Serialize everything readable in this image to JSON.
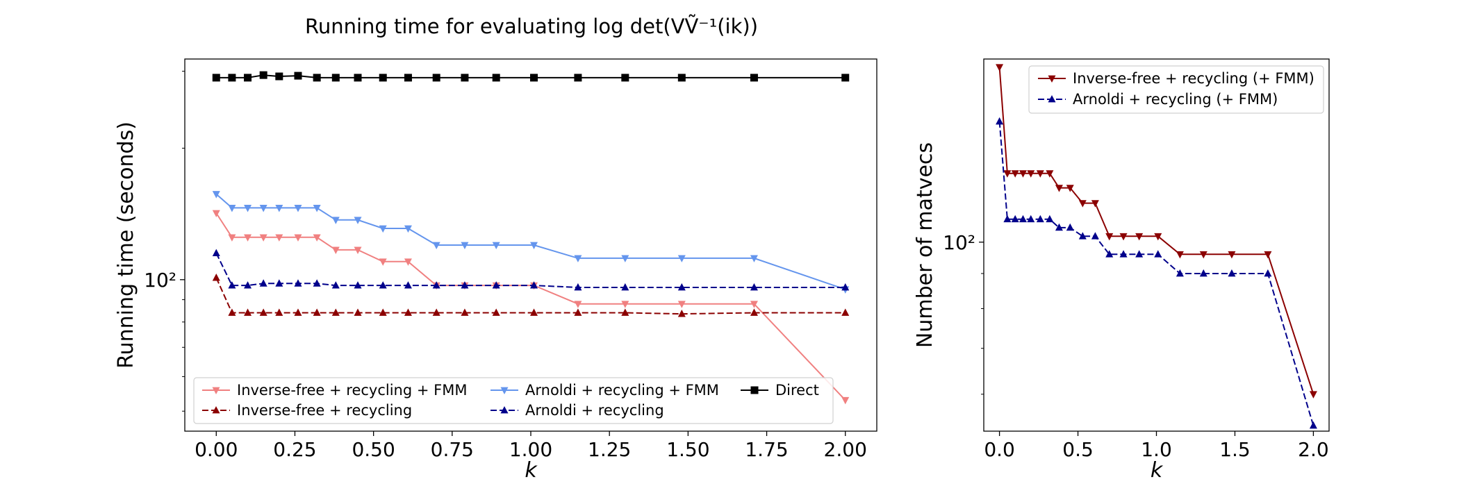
{
  "figure": {
    "title": "Running time for evaluating log det(VṼ⁻¹(ik))"
  },
  "chart_data": [
    {
      "type": "line",
      "title": "Running time for evaluating log det(VṼ⁻¹(ik))",
      "xlabel": "k",
      "ylabel": "Running time (seconds)",
      "y_scale": "log",
      "xlim": [
        -0.1,
        2.1
      ],
      "ylim": [
        45,
        320
      ],
      "x_ticks": [
        0.0,
        0.25,
        0.5,
        0.75,
        1.0,
        1.25,
        1.5,
        1.75,
        2.0
      ],
      "x_tick_labels": [
        "0.00",
        "0.25",
        "0.50",
        "0.75",
        "1.00",
        "1.25",
        "1.50",
        "1.75",
        "2.00"
      ],
      "y_ticks": [
        100
      ],
      "y_tick_labels": [
        "10²"
      ],
      "grid": false,
      "legend_position": "lower-center",
      "legend_columns": 3,
      "series": [
        {
          "name": "Inverse-free + recycling + FMM",
          "color": "#f08080",
          "linestyle": "solid",
          "marker": "triangle-down",
          "x": [
            0.0,
            0.05,
            0.1,
            0.15,
            0.2,
            0.26,
            0.32,
            0.38,
            0.45,
            0.53,
            0.61,
            0.7,
            0.79,
            0.89,
            1.01,
            1.15,
            1.3,
            1.48,
            1.71,
            2.0
          ],
          "y": [
            142,
            125,
            125,
            125,
            125,
            125,
            125,
            117,
            117,
            110,
            110,
            97,
            97,
            97,
            97,
            88,
            88,
            88,
            88,
            53
          ]
        },
        {
          "name": "Inverse-free + recycling",
          "color": "#8b0000",
          "linestyle": "dashed",
          "marker": "triangle-up",
          "x": [
            0.0,
            0.05,
            0.1,
            0.15,
            0.2,
            0.26,
            0.32,
            0.38,
            0.45,
            0.53,
            0.61,
            0.7,
            0.79,
            0.89,
            1.01,
            1.15,
            1.3,
            1.48,
            1.71,
            2.0
          ],
          "y": [
            101,
            84,
            84,
            84,
            84,
            84,
            84,
            84,
            84,
            84,
            84,
            84,
            84,
            84,
            84,
            84,
            84,
            83.5,
            84,
            84
          ]
        },
        {
          "name": "Arnoldi + recycling + FMM",
          "color": "#6495ed",
          "linestyle": "solid",
          "marker": "triangle-down",
          "x": [
            0.0,
            0.05,
            0.1,
            0.15,
            0.2,
            0.26,
            0.32,
            0.38,
            0.45,
            0.53,
            0.61,
            0.7,
            0.79,
            0.89,
            1.01,
            1.15,
            1.3,
            1.48,
            1.71,
            2.0
          ],
          "y": [
            157,
            146,
            146,
            146,
            146,
            146,
            146,
            137,
            137,
            131,
            131,
            120,
            120,
            120,
            120,
            112,
            112,
            112,
            112,
            95
          ]
        },
        {
          "name": "Arnoldi + recycling",
          "color": "#00008b",
          "linestyle": "dashed",
          "marker": "triangle-up",
          "x": [
            0.0,
            0.05,
            0.1,
            0.15,
            0.2,
            0.26,
            0.32,
            0.38,
            0.45,
            0.53,
            0.61,
            0.7,
            0.79,
            0.89,
            1.01,
            1.15,
            1.3,
            1.48,
            1.71,
            2.0
          ],
          "y": [
            115,
            97,
            97,
            98,
            98,
            98,
            98,
            97,
            97,
            97,
            97,
            97,
            97,
            97,
            97,
            96,
            96,
            96,
            96,
            96
          ]
        },
        {
          "name": "Direct",
          "color": "#000000",
          "linestyle": "solid",
          "marker": "square",
          "x": [
            0.0,
            0.05,
            0.1,
            0.15,
            0.2,
            0.26,
            0.32,
            0.38,
            0.45,
            0.53,
            0.61,
            0.7,
            0.79,
            0.89,
            1.01,
            1.15,
            1.3,
            1.48,
            1.71,
            2.0
          ],
          "y": [
            290,
            290,
            290,
            294,
            292,
            293,
            290,
            290,
            290,
            290,
            290,
            290,
            290,
            290,
            290,
            290,
            290,
            290,
            290,
            290
          ]
        }
      ]
    },
    {
      "type": "line",
      "xlabel": "k",
      "ylabel": "Number of matvecs",
      "y_scale": "log",
      "xlim": [
        -0.1,
        2.1
      ],
      "ylim": [
        53,
        185
      ],
      "x_ticks": [
        0.0,
        0.5,
        1.0,
        1.5,
        2.0
      ],
      "x_tick_labels": [
        "0.0",
        "0.5",
        "1.0",
        "1.5",
        "2.0"
      ],
      "y_ticks": [
        100
      ],
      "y_tick_labels": [
        "10²"
      ],
      "grid": false,
      "legend_position": "upper-right",
      "series": [
        {
          "name": "Inverse-free + recycling (+ FMM)",
          "color": "#8b0000",
          "linestyle": "solid",
          "marker": "triangle-down",
          "x": [
            0.0,
            0.05,
            0.1,
            0.15,
            0.2,
            0.26,
            0.32,
            0.38,
            0.45,
            0.53,
            0.61,
            0.7,
            0.79,
            0.89,
            1.01,
            1.15,
            1.3,
            1.48,
            1.71,
            2.0
          ],
          "y": [
            180,
            126,
            126,
            126,
            126,
            126,
            126,
            120,
            120,
            114,
            114,
            102,
            102,
            102,
            102,
            96,
            96,
            96,
            96,
            60
          ]
        },
        {
          "name": "Arnoldi + recycling (+ FMM)",
          "color": "#00008b",
          "linestyle": "dashed",
          "marker": "triangle-up",
          "x": [
            0.0,
            0.05,
            0.1,
            0.15,
            0.2,
            0.26,
            0.32,
            0.38,
            0.45,
            0.53,
            0.61,
            0.7,
            0.79,
            0.89,
            1.01,
            1.15,
            1.3,
            1.48,
            1.71,
            2.0
          ],
          "y": [
            150,
            108,
            108,
            108,
            108,
            108,
            108,
            105,
            105,
            102,
            102,
            96,
            96,
            96,
            96,
            90,
            90,
            90,
            90,
            54
          ]
        }
      ]
    }
  ]
}
